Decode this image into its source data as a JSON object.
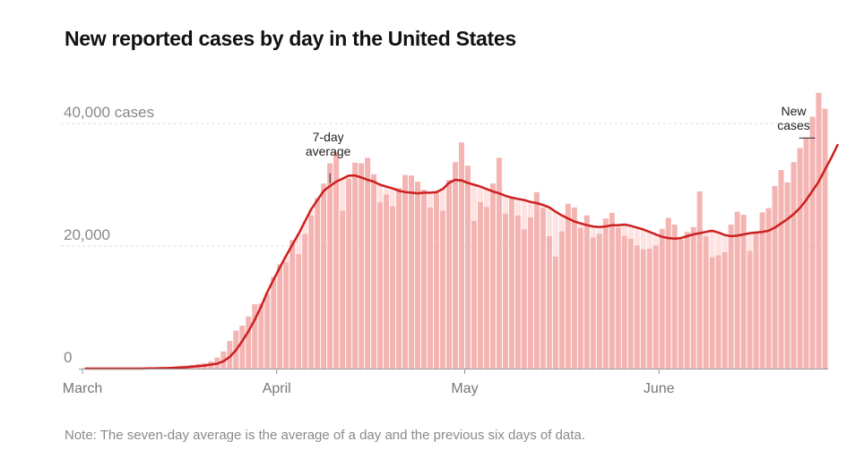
{
  "title": "New reported cases by day in the United States",
  "note": "Note: The seven-day average is the average of a day and the previous six days of data.",
  "colors": {
    "bar": "#f4b4b2",
    "line": "#cc1f1f",
    "grid": "#dddddd",
    "area": "#fde3e2"
  },
  "chart_data": {
    "type": "bar",
    "title": "New reported cases by day in the United States",
    "xlabel": "",
    "ylabel": "",
    "ylim": [
      0,
      45000
    ],
    "grid": true,
    "x_start": "2020-03-01",
    "y_ticks": [
      {
        "value": 0,
        "label": "0"
      },
      {
        "value": 20000,
        "label": "20,000"
      },
      {
        "value": 40000,
        "label": "40,000 cases"
      }
    ],
    "x_ticks": [
      {
        "day": 0,
        "label": "March"
      },
      {
        "day": 31,
        "label": "April"
      },
      {
        "day": 61,
        "label": "May"
      },
      {
        "day": 92,
        "label": "June"
      }
    ],
    "annotations": [
      {
        "label_lines": [
          "7-day",
          "average"
        ],
        "series": "7-day average",
        "day": 39
      },
      {
        "label_lines": [
          "New",
          "cases"
        ],
        "series": "New cases",
        "day": 115
      }
    ],
    "series": [
      {
        "name": "New cases",
        "type": "bar",
        "values": [
          0,
          0,
          0,
          0,
          0,
          0,
          0,
          0,
          0,
          0,
          50,
          100,
          150,
          200,
          300,
          400,
          500,
          600,
          800,
          900,
          1200,
          1800,
          2800,
          4500,
          6200,
          7000,
          8500,
          10500,
          10600,
          12200,
          15000,
          17000,
          17400,
          21000,
          18700,
          22000,
          25000,
          27800,
          30200,
          33500,
          35300,
          25800,
          31000,
          33600,
          33500,
          34400,
          31700,
          27200,
          28400,
          26500,
          29500,
          31600,
          31500,
          30500,
          29200,
          26300,
          28700,
          25800,
          30800,
          33700,
          36900,
          33100,
          24100,
          27200,
          26400,
          30200,
          34400,
          25300,
          27900,
          25000,
          22700,
          24700,
          28800,
          26200,
          21600,
          18300,
          22400,
          26900,
          26300,
          23000,
          25000,
          21400,
          22000,
          24500,
          25400,
          23000,
          21700,
          21200,
          20100,
          19500,
          19600,
          20100,
          22800,
          24600,
          23500,
          21100,
          22300,
          23100,
          28900,
          21600,
          18200,
          18500,
          19000,
          23500,
          25600,
          25100,
          19200,
          22100,
          25500,
          26200,
          29800,
          32400,
          30400,
          33700,
          36000,
          37700,
          41100,
          45000,
          42400
        ]
      },
      {
        "name": "7-day average",
        "type": "line",
        "values": [
          0,
          0,
          0,
          0,
          0,
          0,
          0,
          0,
          0,
          0,
          50,
          50,
          70,
          90,
          130,
          170,
          220,
          300,
          400,
          500,
          650,
          800,
          1200,
          1900,
          3000,
          4500,
          6100,
          8000,
          10100,
          12500,
          14500,
          16500,
          18400,
          20200,
          22000,
          24000,
          26000,
          27500,
          29000,
          29800,
          30500,
          31000,
          31500,
          31500,
          31200,
          30800,
          30500,
          30000,
          29700,
          29400,
          29000,
          28800,
          28700,
          28600,
          28700,
          28700,
          28800,
          29300,
          30300,
          30800,
          30700,
          30300,
          30000,
          29700,
          29300,
          28900,
          28600,
          28200,
          27900,
          27700,
          27500,
          27200,
          27000,
          26700,
          26300,
          25600,
          25000,
          24500,
          24000,
          23700,
          23400,
          23200,
          23100,
          23200,
          23400,
          23400,
          23500,
          23300,
          23000,
          22700,
          22300,
          21900,
          21500,
          21300,
          21200,
          21300,
          21600,
          21900,
          22100,
          22300,
          22500,
          22200,
          21800,
          21600,
          21700,
          21900,
          22100,
          22200,
          22300,
          22500,
          23000,
          23700,
          24400,
          25200,
          26200,
          27500,
          29000,
          30500,
          32500,
          34400,
          36500
        ]
      }
    ]
  }
}
